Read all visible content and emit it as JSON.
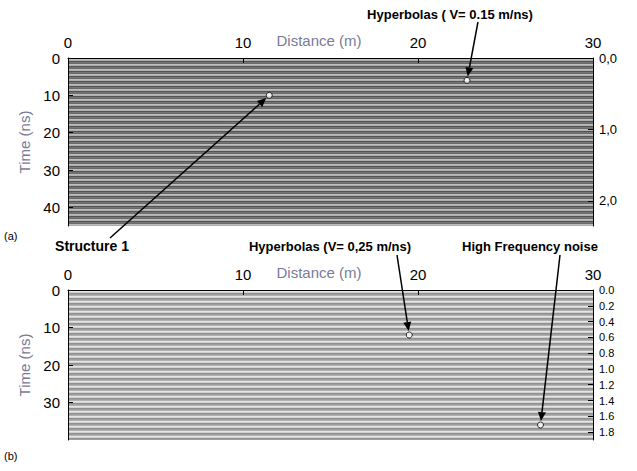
{
  "chart_data": [
    {
      "type": "radargram",
      "panel_label": "(a)",
      "x_label": "Distance (m)",
      "y_label": "Time (ns)",
      "xlim": [
        0,
        30
      ],
      "xticks": [
        0,
        10,
        20,
        30
      ],
      "ylim": [
        0,
        45
      ],
      "yticks": [
        0,
        10,
        20,
        30,
        40
      ],
      "y2lim": [
        0,
        2.35
      ],
      "y2ticks": [
        {
          "value": 0,
          "label": "0,0"
        },
        {
          "value": 1,
          "label": "1,0"
        },
        {
          "value": 2,
          "label": "2,0"
        }
      ],
      "grid": false,
      "annotations": [
        {
          "text": "Hyperbolas ( V= 0.15 m/ns)",
          "x": 22.8,
          "y": 6
        },
        {
          "text": "Structure 1",
          "x": 11.5,
          "y": 10
        }
      ]
    },
    {
      "type": "radargram",
      "panel_label": "(b)",
      "x_label": "Distance (m)",
      "y_label": "Time (ns)",
      "xlim": [
        0,
        30
      ],
      "xticks": [
        0,
        10,
        20,
        30
      ],
      "ylim": [
        0,
        40
      ],
      "yticks": [
        0,
        10,
        20,
        30
      ],
      "y2lim": [
        0,
        1.9
      ],
      "y2ticks": [
        {
          "value": 0,
          "label": "0.0"
        },
        0.2,
        0.4,
        0.6,
        0.8,
        {
          "value": 1,
          "label": "1.0"
        },
        1.2,
        1.4,
        1.6,
        1.8
      ],
      "grid": false,
      "annotations": [
        {
          "text": "Hyperbolas (V= 0,25 m/ns)",
          "x": 19.5,
          "y": 12
        },
        {
          "text": "High Frequency noise",
          "x": 27,
          "y": 36
        }
      ]
    }
  ]
}
